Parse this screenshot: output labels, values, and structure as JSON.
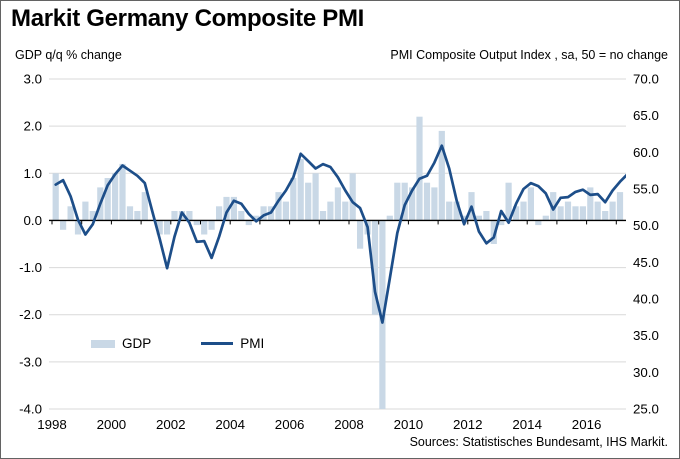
{
  "title": "Markit Germany Composite PMI",
  "axis_captions": {
    "left": "GDP q/q % change",
    "right": "PMI Composite Output Index , sa, 50 = no change"
  },
  "legend": {
    "gdp_label": "GDP",
    "pmi_label": "PMI"
  },
  "source": "Sources: Statistisches Bundesamt, IHS Markit.",
  "chart_data": {
    "type": "combo",
    "title": "Markit Germany Composite PMI",
    "subtitle": "",
    "grid": "horizontal-only",
    "legend_position": "inside-lower-left",
    "categories": [
      "1998Q1",
      "1998Q2",
      "1998Q3",
      "1998Q4",
      "1999Q1",
      "1999Q2",
      "1999Q3",
      "1999Q4",
      "2000Q1",
      "2000Q2",
      "2000Q3",
      "2000Q4",
      "2001Q1",
      "2001Q2",
      "2001Q3",
      "2001Q4",
      "2002Q1",
      "2002Q2",
      "2002Q3",
      "2002Q4",
      "2003Q1",
      "2003Q2",
      "2003Q3",
      "2003Q4",
      "2004Q1",
      "2004Q2",
      "2004Q3",
      "2004Q4",
      "2005Q1",
      "2005Q2",
      "2005Q3",
      "2005Q4",
      "2006Q1",
      "2006Q2",
      "2006Q3",
      "2006Q4",
      "2007Q1",
      "2007Q2",
      "2007Q3",
      "2007Q4",
      "2008Q1",
      "2008Q2",
      "2008Q3",
      "2008Q4",
      "2009Q1",
      "2009Q2",
      "2009Q3",
      "2009Q4",
      "2010Q1",
      "2010Q2",
      "2010Q3",
      "2010Q4",
      "2011Q1",
      "2011Q2",
      "2011Q3",
      "2011Q4",
      "2012Q1",
      "2012Q2",
      "2012Q3",
      "2012Q4",
      "2013Q1",
      "2013Q2",
      "2013Q3",
      "2013Q4",
      "2014Q1",
      "2014Q2",
      "2014Q3",
      "2014Q4",
      "2015Q1",
      "2015Q2",
      "2015Q3",
      "2015Q4",
      "2016Q1",
      "2016Q2",
      "2016Q3",
      "2016Q4",
      "2017Q1",
      "2017Q2"
    ],
    "series": [
      {
        "name": "GDP",
        "type": "bar",
        "axis": "left",
        "values": [
          1.0,
          -0.2,
          0.3,
          -0.3,
          0.4,
          0.2,
          0.7,
          0.9,
          1.0,
          1.2,
          0.3,
          0.2,
          0.6,
          0.0,
          -0.3,
          -0.3,
          0.2,
          0.2,
          0.2,
          -0.1,
          -0.3,
          -0.2,
          0.3,
          0.5,
          0.5,
          0.2,
          -0.1,
          0.1,
          0.3,
          0.3,
          0.6,
          0.4,
          0.9,
          1.3,
          0.8,
          1.0,
          0.2,
          0.4,
          0.7,
          0.4,
          1.0,
          -0.6,
          -0.3,
          -2.0,
          -4.5,
          0.1,
          0.8,
          0.8,
          0.7,
          2.2,
          0.8,
          0.7,
          1.9,
          0.4,
          0.4,
          0.1,
          0.6,
          0.1,
          0.2,
          -0.5,
          -0.1,
          0.8,
          0.3,
          0.4,
          0.7,
          -0.1,
          0.1,
          0.6,
          0.3,
          0.4,
          0.3,
          0.3,
          0.7,
          0.4,
          0.2,
          0.4,
          0.6,
          null
        ]
      },
      {
        "name": "PMI",
        "type": "line",
        "axis": "right",
        "values": [
          55.6,
          56.2,
          54.0,
          50.8,
          48.8,
          50.2,
          53.0,
          55.5,
          57.0,
          58.2,
          57.5,
          56.8,
          55.8,
          52.0,
          48.2,
          44.2,
          48.5,
          51.8,
          50.4,
          47.8,
          47.9,
          45.6,
          48.5,
          51.8,
          53.4,
          53.0,
          51.6,
          50.6,
          51.4,
          51.8,
          53.4,
          54.8,
          56.6,
          59.8,
          58.8,
          57.8,
          58.4,
          58.0,
          56.6,
          54.8,
          53.2,
          52.4,
          49.8,
          41.0,
          36.8,
          42.8,
          49.0,
          52.8,
          54.8,
          56.4,
          56.8,
          58.6,
          60.9,
          57.8,
          53.4,
          50.2,
          52.6,
          49.2,
          47.6,
          48.4,
          52.0,
          50.4,
          53.0,
          55.0,
          55.8,
          55.4,
          54.4,
          52.2,
          53.8,
          53.9,
          54.6,
          54.9,
          54.2,
          54.3,
          53.2,
          54.8,
          56.0,
          57.0
        ]
      }
    ],
    "left_axis": {
      "label": "GDP q/q % change",
      "range": [
        -4.0,
        3.0
      ],
      "ticks": [
        3.0,
        2.0,
        1.0,
        0.0,
        -1.0,
        -2.0,
        -3.0,
        -4.0
      ],
      "tick_labels": [
        "3.0",
        "2.0",
        "1.0",
        "0.0",
        "-1.0",
        "-2.0",
        "-3.0",
        "-4.0"
      ]
    },
    "right_axis": {
      "label": "PMI Composite Output Index , sa, 50 = no change",
      "range": [
        25.0,
        70.0
      ],
      "ticks": [
        70,
        65,
        60,
        55,
        50,
        45,
        40,
        35,
        30,
        25
      ],
      "tick_labels": [
        "70.0",
        "65.0",
        "60.0",
        "55.0",
        "50.0",
        "45.0",
        "40.0",
        "35.0",
        "30.0",
        "25.0"
      ]
    },
    "x_axis": {
      "tick_years": [
        1998,
        2000,
        2002,
        2004,
        2006,
        2008,
        2010,
        2012,
        2014,
        2016
      ],
      "tick_labels": [
        "1998",
        "2000",
        "2002",
        "2004",
        "2006",
        "2008",
        "2010",
        "2012",
        "2014",
        "2016"
      ],
      "minor_tick_every_year": true
    },
    "colors": {
      "gdp_bar": "#c9d8e6",
      "pmi_line": "#1d4e89",
      "gridline": "#d9d9d9",
      "zero_axis": "#000000",
      "text": "#000000"
    },
    "notes": "GDP bar for 2009Q1 (-4.5) is clipped at the left-axis minimum of -4.0"
  }
}
